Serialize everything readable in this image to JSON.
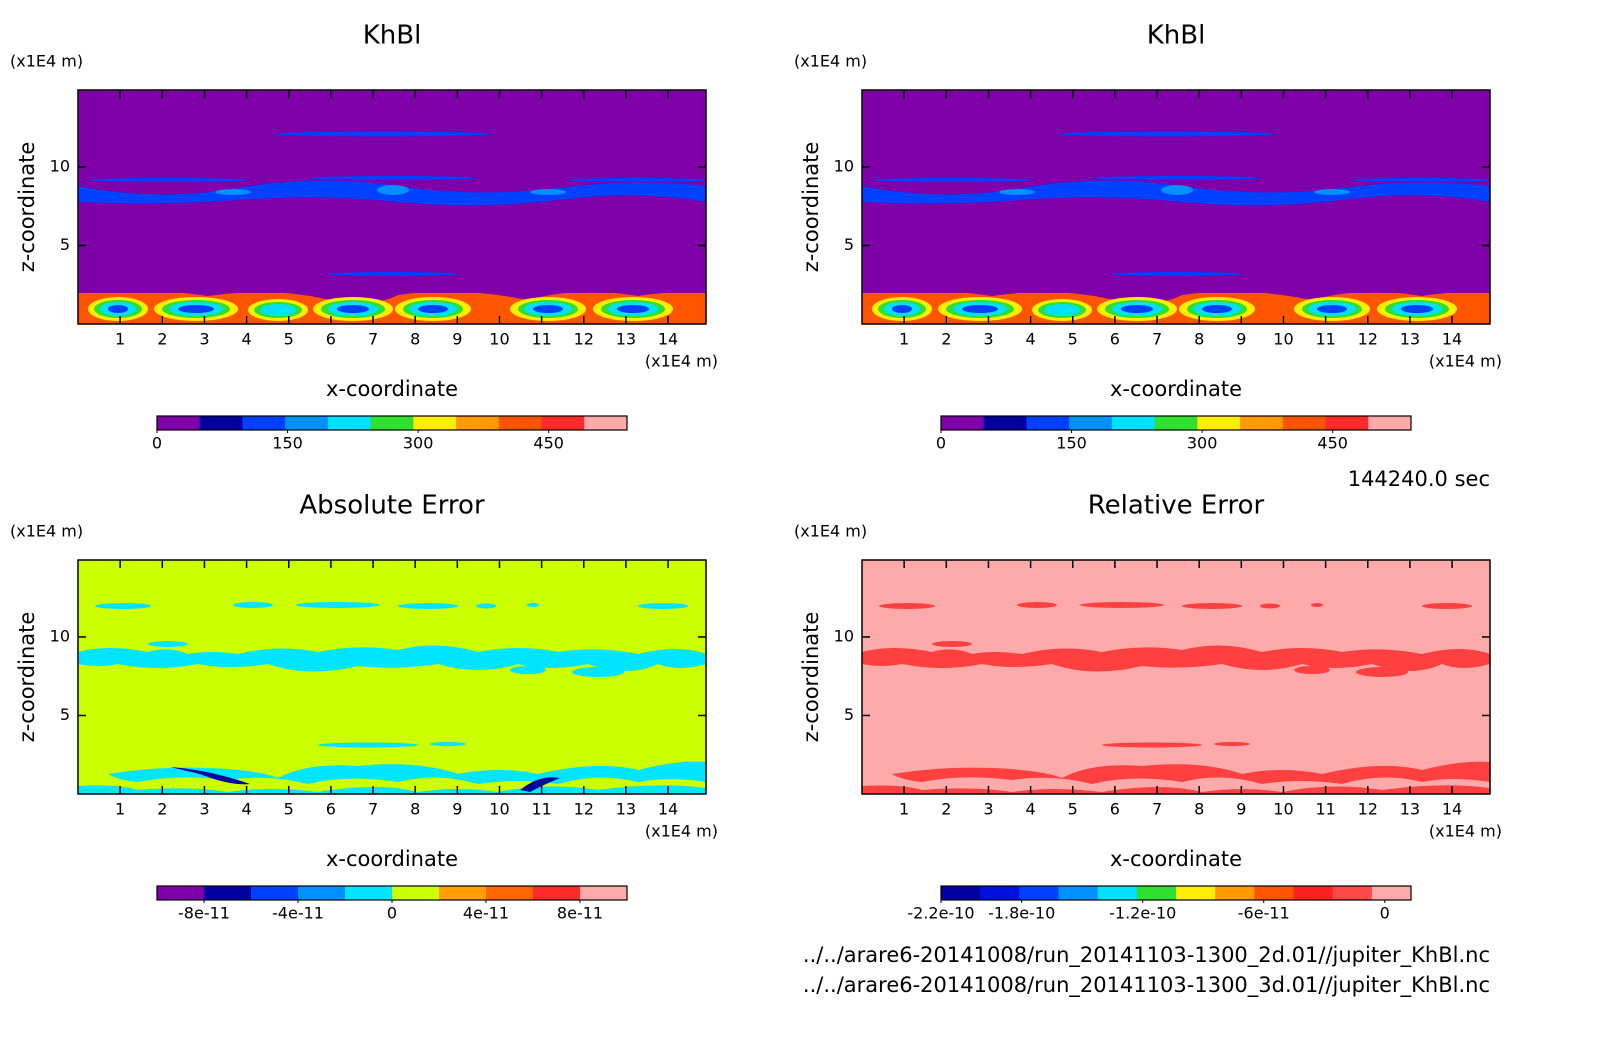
{
  "chart_data": [
    {
      "type": "contour",
      "title": "KhBl",
      "xlabel": "x-coordinate",
      "ylabel": "z-coordinate",
      "xunit": "(x1E4 m)",
      "yunit": "(x1E4 m)",
      "xlim": [
        0,
        14.9
      ],
      "ylim": [
        0,
        14.9
      ],
      "xticks": [
        1,
        2,
        3,
        4,
        5,
        6,
        7,
        8,
        9,
        10,
        11,
        12,
        13,
        14
      ],
      "yticks": [
        5,
        10
      ],
      "colorbar": {
        "lim": [
          0,
          540
        ],
        "ticks": [
          0,
          150,
          300,
          450
        ],
        "colors": [
          "#7f00a8",
          "#0000a0",
          "#0040ff",
          "#0090ff",
          "#00e0ff",
          "#30e030",
          "#ffee00",
          "#ff9900",
          "#ff5500",
          "#ff2a2a",
          "#ffaaaa"
        ]
      }
    },
    {
      "type": "contour",
      "title": "KhBl",
      "xlabel": "x-coordinate",
      "ylabel": "z-coordinate",
      "xunit": "(x1E4 m)",
      "yunit": "(x1E4 m)",
      "xlim": [
        0,
        14.9
      ],
      "ylim": [
        0,
        14.9
      ],
      "xticks": [
        1,
        2,
        3,
        4,
        5,
        6,
        7,
        8,
        9,
        10,
        11,
        12,
        13,
        14
      ],
      "yticks": [
        5,
        10
      ],
      "colorbar": {
        "lim": [
          0,
          540
        ],
        "ticks": [
          0,
          150,
          300,
          450
        ],
        "colors": [
          "#7f00a8",
          "#0000a0",
          "#0040ff",
          "#0090ff",
          "#00e0ff",
          "#30e030",
          "#ffee00",
          "#ff9900",
          "#ff5500",
          "#ff2a2a",
          "#ffaaaa"
        ]
      }
    },
    {
      "type": "contour",
      "title": "Absolute Error",
      "xlabel": "x-coordinate",
      "ylabel": "z-coordinate",
      "xunit": "(x1E4 m)",
      "yunit": "(x1E4 m)",
      "xlim": [
        0,
        14.9
      ],
      "ylim": [
        0,
        14.9
      ],
      "xticks": [
        1,
        2,
        3,
        4,
        5,
        6,
        7,
        8,
        9,
        10,
        11,
        12,
        13,
        14
      ],
      "yticks": [
        5,
        10
      ],
      "colorbar": {
        "lim": [
          -1e-10,
          1e-10
        ],
        "ticks": [
          -8e-11,
          -4e-11,
          0,
          4e-11,
          8e-11
        ],
        "colors": [
          "#7f00a8",
          "#0000a0",
          "#0040ff",
          "#0090ff",
          "#00e5ff",
          "#ccff00",
          "#ffa000",
          "#ff6600",
          "#ff2a2a",
          "#ffaaaa"
        ]
      }
    },
    {
      "type": "contour",
      "title": "Relative Error",
      "xlabel": "x-coordinate",
      "ylabel": "z-coordinate",
      "xunit": "(x1E4 m)",
      "yunit": "(x1E4 m)",
      "xlim": [
        0,
        14.9
      ],
      "ylim": [
        0,
        14.9
      ],
      "xticks": [
        1,
        2,
        3,
        4,
        5,
        6,
        7,
        8,
        9,
        10,
        11,
        12,
        13,
        14
      ],
      "yticks": [
        5,
        10
      ],
      "colorbar": {
        "lim": [
          -2.2e-10,
          1.3e-11
        ],
        "ticks": [
          -2.2e-10,
          -1.8e-10,
          -1.2e-10,
          -6e-11,
          0
        ],
        "colors": [
          "#0000a0",
          "#0010e0",
          "#0040ff",
          "#0090ff",
          "#00e0ff",
          "#30e030",
          "#ffee00",
          "#ff9900",
          "#ff5500",
          "#ff2020",
          "#ff4848",
          "#ffaaaa"
        ]
      }
    }
  ],
  "time": "144240.0 sec",
  "files": [
    "../../arare6-20141008/run_20141103-1300_2d.01//jupiter_KhBl.nc",
    "../../arare6-20141008/run_20141103-1300_3d.01//jupiter_KhBl.nc"
  ]
}
